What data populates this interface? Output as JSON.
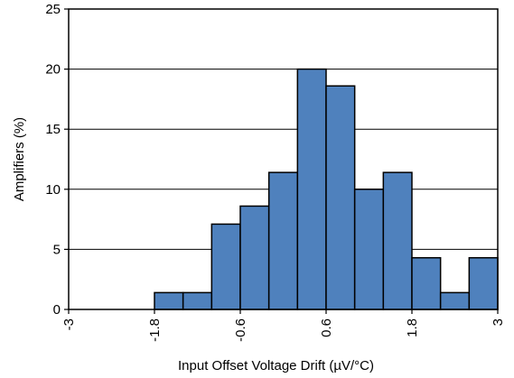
{
  "chart_data": {
    "type": "bar",
    "title": "",
    "xlabel": "Input Offset Voltage Drift (µV/°C)",
    "ylabel": "Amplifiers (%)",
    "bin_edges": [
      -3,
      -2.6,
      -2.2,
      -1.8,
      -1.4,
      -1.0,
      -0.6,
      -0.2,
      0.2,
      0.6,
      1.0,
      1.4,
      1.8,
      2.2,
      2.6,
      3.0
    ],
    "values": [
      0,
      0,
      0,
      1.4,
      1.4,
      7.1,
      8.6,
      11.4,
      20.0,
      18.6,
      10.0,
      11.4,
      4.3,
      1.4,
      4.3
    ],
    "xlim": [
      -3,
      3
    ],
    "ylim": [
      0,
      25
    ],
    "x_ticks": [
      -3,
      -1.8,
      -0.6,
      0.6,
      1.8,
      3
    ],
    "x_tick_labels": [
      "-3",
      "-1.8",
      "-0.6",
      "0.6",
      "1.8",
      "3"
    ],
    "y_ticks": [
      0,
      5,
      10,
      15,
      20,
      25
    ],
    "y_tick_labels": [
      "0",
      "5",
      "10",
      "15",
      "20",
      "25"
    ],
    "grid": "horizontal",
    "bar_color": "#4f81bd",
    "bar_edge_color": "#000000"
  }
}
